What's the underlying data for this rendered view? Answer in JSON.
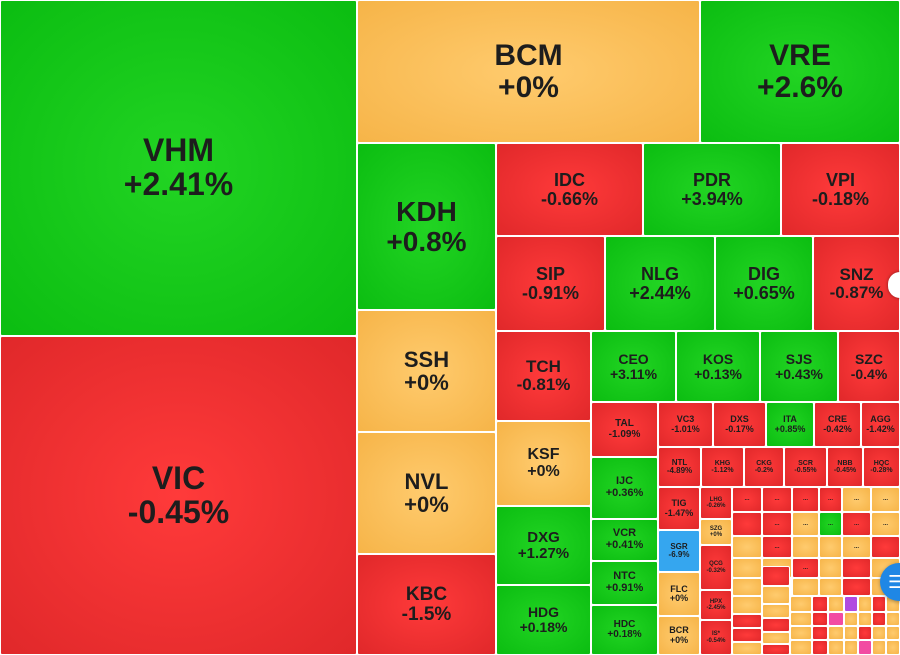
{
  "chart_data": {
    "type": "treemap",
    "colors": {
      "up": "#16c71a",
      "down": "#ec3434",
      "flat": "#f8bc55",
      "misc_cyan": "#35a6ef",
      "misc_purple": "#b14be0",
      "misc_pink": "#f24ba2"
    },
    "tiles": [
      {
        "ticker": "VHM",
        "change": "+2.41%",
        "dir": "up"
      },
      {
        "ticker": "VIC",
        "change": "-0.45%",
        "dir": "down"
      },
      {
        "ticker": "BCM",
        "change": "+0%",
        "dir": "flat"
      },
      {
        "ticker": "VRE",
        "change": "+2.6%",
        "dir": "up"
      },
      {
        "ticker": "KDH",
        "change": "+0.8%",
        "dir": "up"
      },
      {
        "ticker": "SSH",
        "change": "+0%",
        "dir": "flat"
      },
      {
        "ticker": "NVL",
        "change": "+0%",
        "dir": "flat"
      },
      {
        "ticker": "KBC",
        "change": "-1.5%",
        "dir": "down"
      },
      {
        "ticker": "IDC",
        "change": "-0.66%",
        "dir": "down"
      },
      {
        "ticker": "PDR",
        "change": "+3.94%",
        "dir": "up"
      },
      {
        "ticker": "VPI",
        "change": "-0.18%",
        "dir": "down"
      },
      {
        "ticker": "SIP",
        "change": "-0.91%",
        "dir": "down"
      },
      {
        "ticker": "NLG",
        "change": "+2.44%",
        "dir": "up"
      },
      {
        "ticker": "DIG",
        "change": "+0.65%",
        "dir": "up"
      },
      {
        "ticker": "SNZ",
        "change": "-0.87%",
        "dir": "down"
      },
      {
        "ticker": "TCH",
        "change": "-0.81%",
        "dir": "down"
      },
      {
        "ticker": "CEO",
        "change": "+3.11%",
        "dir": "up"
      },
      {
        "ticker": "KOS",
        "change": "+0.13%",
        "dir": "up"
      },
      {
        "ticker": "SJS",
        "change": "+0.43%",
        "dir": "up"
      },
      {
        "ticker": "SZC",
        "change": "-0.4%",
        "dir": "down"
      },
      {
        "ticker": "KSF",
        "change": "+0%",
        "dir": "flat"
      },
      {
        "ticker": "DXG",
        "change": "+1.27%",
        "dir": "up"
      },
      {
        "ticker": "HDG",
        "change": "+0.18%",
        "dir": "up"
      },
      {
        "ticker": "TAL",
        "change": "-1.09%",
        "dir": "down"
      },
      {
        "ticker": "VC3",
        "change": "-1.01%",
        "dir": "down"
      },
      {
        "ticker": "DXS",
        "change": "-0.17%",
        "dir": "down"
      },
      {
        "ticker": "ITA",
        "change": "+0.85%",
        "dir": "up"
      },
      {
        "ticker": "CRE",
        "change": "-0.42%",
        "dir": "down"
      },
      {
        "ticker": "AGG",
        "change": "-1.42%",
        "dir": "down"
      },
      {
        "ticker": "IJC",
        "change": "+0.36%",
        "dir": "up"
      },
      {
        "ticker": "NTL",
        "change": "-4.89%",
        "dir": "down"
      },
      {
        "ticker": "KHG",
        "change": "-1.12%",
        "dir": "down"
      },
      {
        "ticker": "CKG",
        "change": "-0.2%",
        "dir": "down"
      },
      {
        "ticker": "SCR",
        "change": "-0.55%",
        "dir": "down"
      },
      {
        "ticker": "NBB",
        "change": "-0.45%",
        "dir": "down"
      },
      {
        "ticker": "HQC",
        "change": "-0.28%",
        "dir": "down"
      },
      {
        "ticker": "VCR",
        "change": "+0.41%",
        "dir": "up"
      },
      {
        "ticker": "TIG",
        "change": "-1.47%",
        "dir": "down"
      },
      {
        "ticker": "LHG",
        "change": "-0.26%",
        "dir": "down"
      },
      {
        "ticker": "SGR",
        "change": "-6.9%",
        "dir": "cyan"
      },
      {
        "ticker": "SZG",
        "change": "+0%",
        "dir": "flat"
      },
      {
        "ticker": "NTC",
        "change": "+0.91%",
        "dir": "up"
      },
      {
        "ticker": "FLC",
        "change": "+0%",
        "dir": "flat"
      },
      {
        "ticker": "QCG",
        "change": "-0.32%",
        "dir": "down"
      },
      {
        "ticker": "HPX",
        "change": "-2.45%",
        "dir": "down"
      },
      {
        "ticker": "HDC",
        "change": "+0.18%",
        "dir": "up"
      },
      {
        "ticker": "BCR",
        "change": "+0%",
        "dir": "flat"
      },
      {
        "ticker": "IS*",
        "change": "-0.54%",
        "dir": "down"
      }
    ],
    "ellipsis_label": "..."
  }
}
